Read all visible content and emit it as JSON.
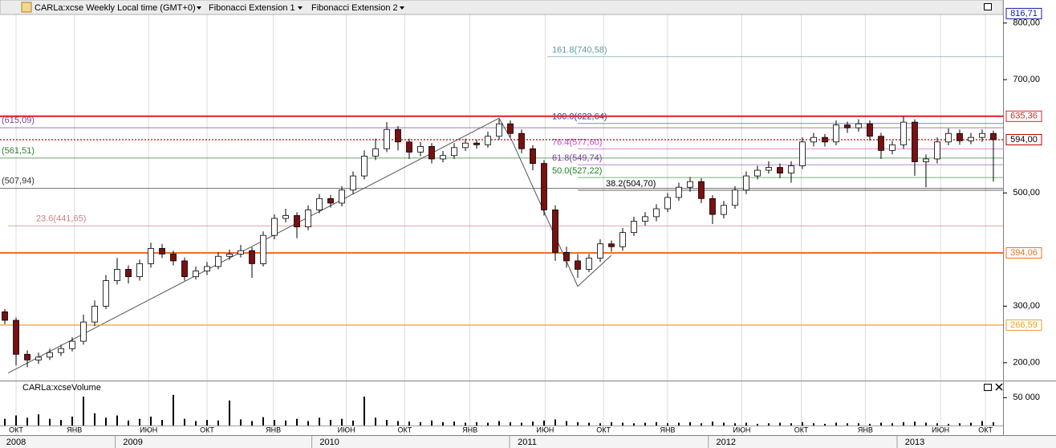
{
  "header": {
    "symbol": "CARLa:xcse Weekly Local time (GMT+0)",
    "studies": [
      "Fibonacci Extension 1",
      "Fibonacci Extension 2"
    ]
  },
  "chart_data": {
    "type": "candlestick",
    "up_color": "#ffffff",
    "down_color": "#7a1010",
    "grid": true,
    "xlim": [
      -0.43,
      88.86
    ],
    "ylim": [
      170,
      818
    ],
    "yticks": [
      {
        "value": 800,
        "label": "800,00"
      },
      {
        "value": 700,
        "label": "700,00"
      },
      {
        "value": 500,
        "label": "500,00"
      },
      {
        "value": 300,
        "label": "300,00"
      },
      {
        "value": 200,
        "label": "200,00"
      }
    ],
    "xticks": [
      {
        "value": 1.0,
        "label": "ОКТ"
      },
      {
        "value": 6.2,
        "label": "ЯНВ"
      },
      {
        "value": 12.8,
        "label": "ИЮН"
      },
      {
        "value": 18.0,
        "label": "ОКТ"
      },
      {
        "value": 23.9,
        "label": "ЯНВ"
      },
      {
        "value": 30.4,
        "label": "ИЮН"
      },
      {
        "value": 35.6,
        "label": "ОКТ"
      },
      {
        "value": 41.4,
        "label": "ЯНВ"
      },
      {
        "value": 48.1,
        "label": "ИЮН"
      },
      {
        "value": 53.3,
        "label": "ОКТ"
      },
      {
        "value": 59.0,
        "label": "ЯНВ"
      },
      {
        "value": 65.6,
        "label": "ИЮН"
      },
      {
        "value": 70.9,
        "label": "ОКТ"
      },
      {
        "value": 76.6,
        "label": "ЯНВ"
      },
      {
        "value": 83.3,
        "label": "ИЮН"
      },
      {
        "value": 87.3,
        "label": "ОКТ"
      }
    ],
    "year_ticks": [
      {
        "value": 1.0,
        "label": "2008"
      },
      {
        "value": 11.4,
        "label": "2009"
      },
      {
        "value": 28.9,
        "label": "2010"
      },
      {
        "value": 46.5,
        "label": "2011"
      },
      {
        "value": 64.2,
        "label": "2012"
      },
      {
        "value": 81.0,
        "label": "2013"
      }
    ],
    "open": [
      290,
      275,
      215,
      205,
      210,
      218,
      225,
      238,
      272,
      300,
      345,
      365,
      352,
      375,
      402,
      392,
      380,
      352,
      362,
      370,
      388,
      392,
      398,
      375,
      425,
      455,
      460,
      440,
      470,
      490,
      482,
      505,
      530,
      565,
      578,
      612,
      590,
      572,
      582,
      560,
      566,
      580,
      588,
      585,
      600,
      622,
      605,
      578,
      552,
      470,
      395,
      380,
      365,
      385,
      410,
      405,
      430,
      450,
      458,
      472,
      492,
      510,
      520,
      490,
      462,
      478,
      505,
      530,
      540,
      545,
      535,
      548,
      590,
      598,
      590,
      620,
      615,
      622,
      600,
      575,
      585,
      625,
      555,
      560,
      590,
      605,
      592,
      598,
      605
    ],
    "high": [
      295,
      280,
      222,
      218,
      225,
      232,
      245,
      285,
      310,
      355,
      385,
      372,
      382,
      412,
      410,
      398,
      386,
      370,
      378,
      395,
      400,
      408,
      404,
      432,
      462,
      472,
      466,
      478,
      498,
      496,
      512,
      538,
      575,
      596,
      625,
      618,
      596,
      590,
      588,
      574,
      588,
      596,
      594,
      608,
      630,
      628,
      612,
      584,
      558,
      478,
      405,
      392,
      392,
      418,
      416,
      438,
      458,
      466,
      480,
      500,
      518,
      528,
      526,
      496,
      486,
      512,
      538,
      548,
      556,
      552,
      556,
      598,
      606,
      604,
      628,
      626,
      630,
      628,
      606,
      592,
      635,
      630,
      568,
      598,
      614,
      612,
      606,
      612,
      610
    ],
    "low": [
      268,
      195,
      192,
      198,
      205,
      212,
      220,
      232,
      265,
      295,
      338,
      340,
      345,
      368,
      385,
      372,
      345,
      347,
      355,
      365,
      382,
      386,
      350,
      370,
      418,
      448,
      420,
      434,
      464,
      474,
      476,
      498,
      524,
      558,
      572,
      575,
      560,
      565,
      552,
      554,
      560,
      574,
      578,
      580,
      594,
      598,
      570,
      540,
      460,
      380,
      368,
      350,
      360,
      378,
      396,
      398,
      424,
      442,
      450,
      466,
      486,
      502,
      482,
      445,
      455,
      472,
      498,
      524,
      534,
      526,
      518,
      542,
      582,
      582,
      584,
      606,
      608,
      592,
      560,
      568,
      578,
      530,
      510,
      552,
      584,
      585,
      586,
      590,
      520
    ],
    "close": [
      275,
      215,
      205,
      210,
      218,
      225,
      238,
      272,
      300,
      345,
      365,
      352,
      375,
      402,
      392,
      380,
      352,
      362,
      370,
      388,
      392,
      398,
      375,
      425,
      455,
      460,
      440,
      470,
      490,
      482,
      505,
      530,
      565,
      578,
      612,
      590,
      572,
      582,
      560,
      566,
      580,
      588,
      585,
      600,
      622,
      605,
      578,
      552,
      470,
      395,
      380,
      365,
      385,
      410,
      405,
      430,
      450,
      458,
      472,
      492,
      510,
      520,
      490,
      462,
      478,
      505,
      530,
      540,
      545,
      535,
      548,
      590,
      598,
      590,
      620,
      615,
      622,
      600,
      575,
      585,
      625,
      555,
      560,
      590,
      605,
      592,
      598,
      605,
      594
    ],
    "trend_line": {
      "x": [
        0.3,
        44,
        45.2,
        51,
        54
      ],
      "y": [
        182,
        632,
        590,
        335,
        390
      ]
    },
    "levels": [
      {
        "value": 816.71,
        "label": "816,71",
        "color": "#1020a0",
        "style": "solid"
      },
      {
        "value": 635.36,
        "label": "635,36",
        "color": "#e02020",
        "style": "bold"
      },
      {
        "value": 594,
        "label": "594,00",
        "color": "#c00000",
        "style": "dotted"
      },
      {
        "value": 394.06,
        "label": "394,06",
        "color": "#f07020",
        "style": "bold"
      },
      {
        "value": 266.59,
        "label": "266,59",
        "color": "#e8a030",
        "style": "solid"
      }
    ],
    "fib1": [
      {
        "value": 615.09,
        "label": "(615,09)",
        "color": "#7b3f9e"
      },
      {
        "value": 561.51,
        "label": "(561,51)",
        "color": "#2e7d32"
      },
      {
        "value": 507.94,
        "label": "(507,94)",
        "color": "#333333"
      },
      {
        "value": 441.65,
        "label": "23.6(441,65)",
        "color": "#d08080"
      }
    ],
    "fib2": [
      {
        "value": 740.58,
        "label": "161.8(740,58)",
        "color": "#5f9aa5"
      },
      {
        "value": 622.64,
        "label": "100.0(622,64)",
        "color": "#2040a0"
      },
      {
        "value": 577.6,
        "label": "76.4(577,60)",
        "color": "#d040d0"
      },
      {
        "value": 549.74,
        "label": "61.8(549,74)",
        "color": "#8040a0"
      },
      {
        "value": 527.22,
        "label": "50.0(527,22)",
        "color": "#208020"
      },
      {
        "value": 504.7,
        "label": "38.2(504,70)",
        "color": "#000000"
      }
    ],
    "volume": {
      "title": "CARLa:xcseVolume",
      "color": "#000000",
      "ylim": [
        0,
        75000
      ],
      "yticks": [
        {
          "value": 50000,
          "label": "50 000"
        }
      ],
      "values": [
        12000,
        18000,
        14000,
        20000,
        12000,
        10000,
        16000,
        52000,
        22000,
        14000,
        18000,
        9000,
        12000,
        16000,
        10000,
        55000,
        12000,
        8000,
        10000,
        9000,
        45000,
        11000,
        8000,
        15000,
        10000,
        9000,
        12000,
        8000,
        14000,
        10000,
        12000,
        9000,
        52000,
        14000,
        10000,
        8000,
        7000,
        6000,
        9000,
        6000,
        7000,
        5000,
        6000,
        5000,
        8000,
        6000,
        5000,
        7000,
        9000,
        11000,
        8000,
        6000,
        5000,
        4000,
        6000,
        5000,
        4000,
        5000,
        6000,
        4000,
        5000,
        6000,
        4000,
        7000,
        5000,
        4000,
        5000,
        3000,
        4000,
        5000,
        4000,
        6000,
        4000,
        3000,
        5000,
        4000,
        4000,
        3000,
        5000,
        4000,
        6000,
        7000,
        5000,
        4000,
        3000,
        4000,
        5000,
        8000,
        6000
      ]
    }
  }
}
